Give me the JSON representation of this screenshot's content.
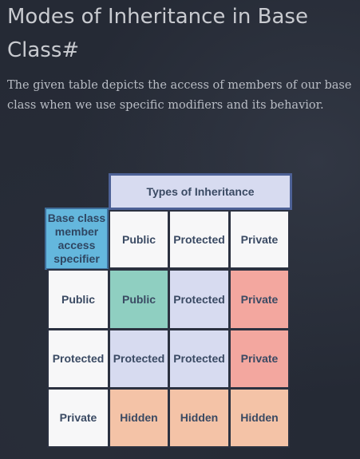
{
  "heading": "Modes of Inheritance in Base Class#",
  "description": "The given table depicts the access of members of our base class when we use specific modifiers and its behavior.",
  "table": {
    "header": "Types of Inheritance",
    "corner": "Base class member access specifier",
    "columns": [
      "Public",
      "Protected",
      "Private"
    ],
    "rows": [
      {
        "label": "Public",
        "cells": [
          "Public",
          "Protected",
          "Private"
        ]
      },
      {
        "label": "Protected",
        "cells": [
          "Protected",
          "Protected",
          "Private"
        ]
      },
      {
        "label": "Private",
        "cells": [
          "Hidden",
          "Hidden",
          "Hidden"
        ]
      }
    ]
  },
  "colors": {
    "background": "#252a35",
    "header_fill": "#d7dbf0",
    "public": "#8fcfc1",
    "protected": "#d7dbf0",
    "private": "#f3a79f",
    "hidden": "#f4c3a7",
    "corner": "#64b7dd"
  }
}
